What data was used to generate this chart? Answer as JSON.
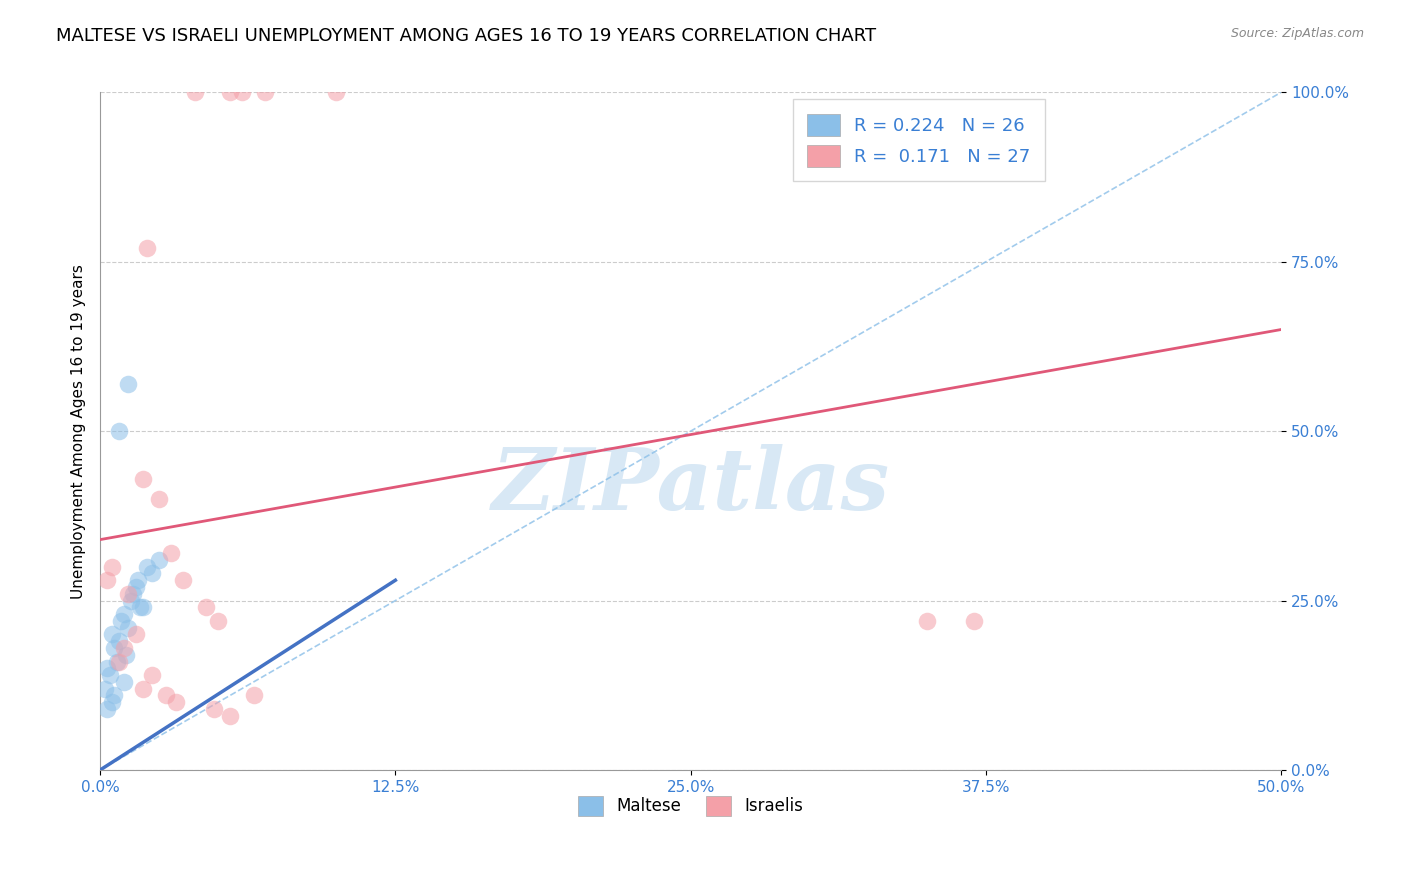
{
  "title": "MALTESE VS ISRAELI UNEMPLOYMENT AMONG AGES 16 TO 19 YEARS CORRELATION CHART",
  "source": "Source: ZipAtlas.com",
  "ylabel": "Unemployment Among Ages 16 to 19 years",
  "x_tick_labels": [
    "0.0%",
    "12.5%",
    "25.0%",
    "37.5%",
    "50.0%"
  ],
  "x_tick_positions": [
    0.0,
    12.5,
    25.0,
    37.5,
    50.0
  ],
  "y_tick_labels": [
    "100.0%",
    "75.0%",
    "50.0%",
    "25.0%",
    "0.0%"
  ],
  "y_tick_positions": [
    100.0,
    75.0,
    50.0,
    25.0,
    0.0
  ],
  "xlim": [
    0.0,
    50.0
  ],
  "ylim": [
    0.0,
    100.0
  ],
  "legend_label_blue": "Maltese",
  "legend_label_pink": "Israelis",
  "R_blue": "0.224",
  "N_blue": "26",
  "R_pink": "0.171",
  "N_pink": "27",
  "blue_color": "#8bbfe8",
  "pink_color": "#f4a0a8",
  "blue_dark_color": "#4472c4",
  "trend_line_pink_color": "#e05878",
  "diag_line_color": "#8bbfe8",
  "watermark": "ZIPatlas",
  "title_fontsize": 13,
  "axis_label_fontsize": 11,
  "tick_fontsize": 11,
  "maltese_x": [
    0.3,
    0.4,
    0.5,
    0.6,
    0.7,
    0.8,
    0.9,
    1.0,
    1.1,
    1.2,
    1.3,
    1.4,
    1.5,
    1.6,
    1.7,
    1.8,
    2.0,
    2.2,
    2.5,
    0.2,
    0.3,
    0.5,
    0.6,
    0.8,
    1.0,
    1.2
  ],
  "maltese_y": [
    15.0,
    14.0,
    20.0,
    18.0,
    16.0,
    19.0,
    22.0,
    23.0,
    17.0,
    21.0,
    25.0,
    26.0,
    27.0,
    28.0,
    24.0,
    24.0,
    30.0,
    29.0,
    31.0,
    12.0,
    9.0,
    10.0,
    11.0,
    50.0,
    13.0,
    57.0
  ],
  "israeli_x": [
    0.3,
    0.5,
    0.8,
    1.0,
    1.5,
    1.8,
    2.0,
    2.2,
    2.5,
    3.0,
    3.5,
    4.0,
    4.5,
    5.0,
    5.5,
    6.0,
    6.5,
    7.0,
    10.0,
    1.2,
    1.8,
    2.8,
    3.2,
    4.8,
    5.5,
    35.0,
    37.0
  ],
  "israeli_y": [
    28.0,
    30.0,
    16.0,
    18.0,
    20.0,
    12.0,
    77.0,
    14.0,
    40.0,
    32.0,
    28.0,
    100.0,
    24.0,
    22.0,
    100.0,
    100.0,
    11.0,
    100.0,
    100.0,
    26.0,
    43.0,
    11.0,
    10.0,
    9.0,
    8.0,
    22.0,
    22.0
  ],
  "pink_trend_x0": 0.0,
  "pink_trend_y0": 34.0,
  "pink_trend_x1": 50.0,
  "pink_trend_y1": 65.0,
  "blue_trend_x0": 0.0,
  "blue_trend_y0": 0.0,
  "blue_trend_x1": 12.5,
  "blue_trend_y1": 28.0,
  "diag_x0": 0.0,
  "diag_y0": 0.0,
  "diag_x1": 50.0,
  "diag_y1": 100.0
}
